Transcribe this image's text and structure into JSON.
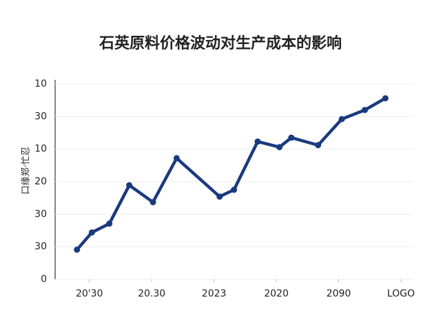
{
  "chart_data": {
    "type": "line",
    "title": "石英原料价格波动对生产成本的影响",
    "y_label": "口缘郑·忙忍",
    "x": [
      0.8,
      1.04,
      1.32,
      1.64,
      2.02,
      2.4,
      3.09,
      3.32,
      3.7,
      4.05,
      4.24,
      4.67,
      5.05,
      5.42,
      5.75
    ],
    "series": [
      {
        "name": "",
        "color": "#1b3a7e",
        "values": [
          0.91,
          1.44,
          1.71,
          2.89,
          2.37,
          3.72,
          2.54,
          2.75,
          4.23,
          4.06,
          4.35,
          4.12,
          4.92,
          5.2,
          5.56
        ]
      }
    ],
    "xlim": [
      0.45,
      6.2
    ],
    "xticks": [
      {
        "value": 1,
        "label": "20'30"
      },
      {
        "value": 2,
        "label": "20.30"
      },
      {
        "value": 3,
        "label": "2023"
      },
      {
        "value": 4,
        "label": "2020"
      },
      {
        "value": 5,
        "label": "2090"
      },
      {
        "value": 6,
        "label": "LOGO"
      }
    ],
    "ylim": [
      0,
      6
    ],
    "yticks": [
      {
        "value": 0,
        "label": "0"
      },
      {
        "value": 1,
        "label": "30"
      },
      {
        "value": 2,
        "label": "30"
      },
      {
        "value": 3,
        "label": "20"
      },
      {
        "value": 4,
        "label": "10"
      },
      {
        "value": 5,
        "label": "30"
      },
      {
        "value": 6,
        "label": "10"
      }
    ],
    "grid": true
  }
}
